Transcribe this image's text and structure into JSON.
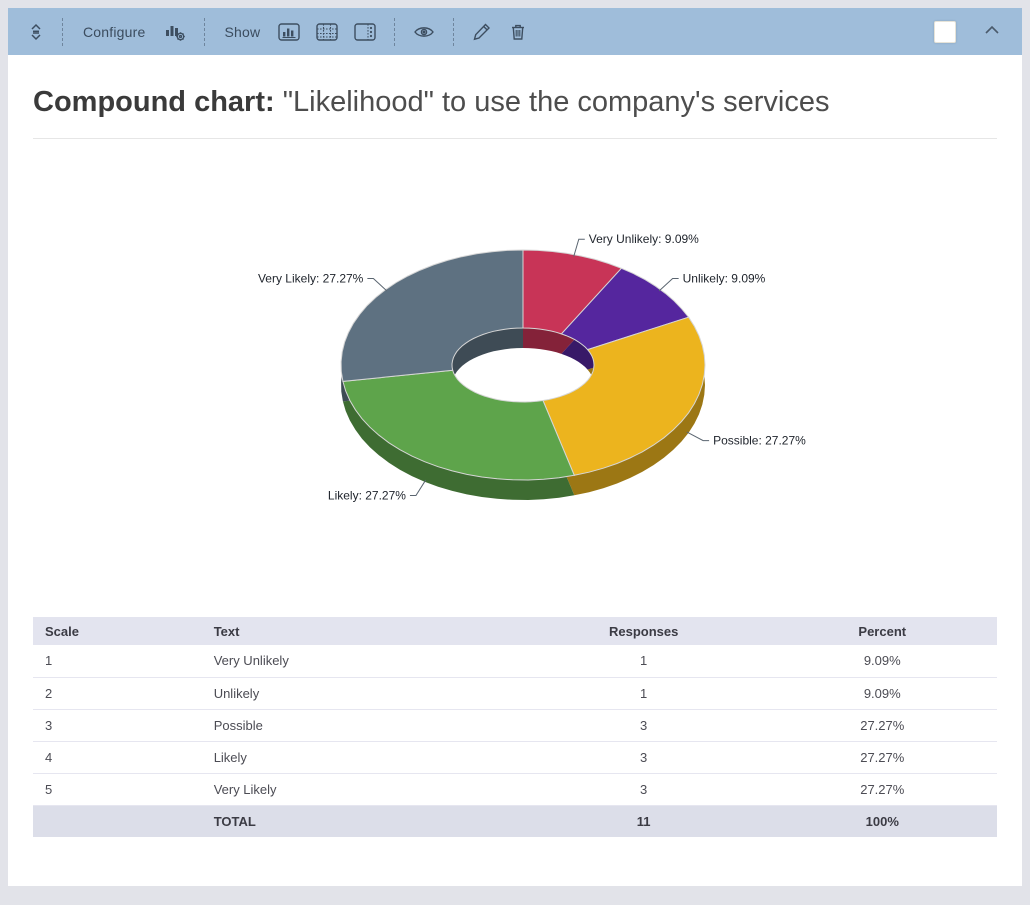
{
  "toolbar": {
    "configure_label": "Configure",
    "show_label": "Show",
    "icons": [
      "drag-handle-icon",
      "chart-settings-icon",
      "bar-chart-icon",
      "data-table-icon",
      "legend-panel-icon",
      "eye-icon",
      "pencil-icon",
      "trash-icon",
      "chevron-up-icon"
    ]
  },
  "header": {
    "title_bold": "Compound chart:",
    "title_rest": " \"Likelihood\" to use the company's services"
  },
  "chart_data": {
    "type": "pie",
    "subtype": "3d-donut",
    "title": "\"Likelihood\" to use the company's services",
    "categories": [
      "Very Unlikely",
      "Unlikely",
      "Possible",
      "Likely",
      "Very Likely"
    ],
    "values": [
      1,
      1,
      3,
      3,
      3
    ],
    "percents": [
      9.09,
      9.09,
      27.27,
      27.27,
      27.27
    ],
    "labels": [
      "Very Unlikely: 9.09%",
      "Unlikely: 9.09%",
      "Possible: 27.27%",
      "Likely: 27.27%",
      "Very Likely: 27.27%"
    ],
    "colors": [
      "#c83457",
      "#55269e",
      "#ecb41e",
      "#5ea44b",
      "#5e7181"
    ],
    "start_angle_deg": 0,
    "direction": "clockwise",
    "legend_position": "callout-labels",
    "total_responses": 11
  },
  "table": {
    "headers": [
      "Scale",
      "Text",
      "Responses",
      "Percent"
    ],
    "rows": [
      {
        "scale": "1",
        "text": "Very Unlikely",
        "responses": "1",
        "percent": "9.09%"
      },
      {
        "scale": "2",
        "text": "Unlikely",
        "responses": "1",
        "percent": "9.09%"
      },
      {
        "scale": "3",
        "text": "Possible",
        "responses": "3",
        "percent": "27.27%"
      },
      {
        "scale": "4",
        "text": "Likely",
        "responses": "3",
        "percent": "27.27%"
      },
      {
        "scale": "5",
        "text": "Very Likely",
        "responses": "3",
        "percent": "27.27%"
      }
    ],
    "total": {
      "label": "TOTAL",
      "responses": "11",
      "percent": "100%"
    }
  },
  "colors": {
    "toolbar_bg": "#9fbdda",
    "page_bg": "#e2e3e9",
    "table_header_bg": "#e3e4ef",
    "table_total_bg": "#dcdee9"
  }
}
